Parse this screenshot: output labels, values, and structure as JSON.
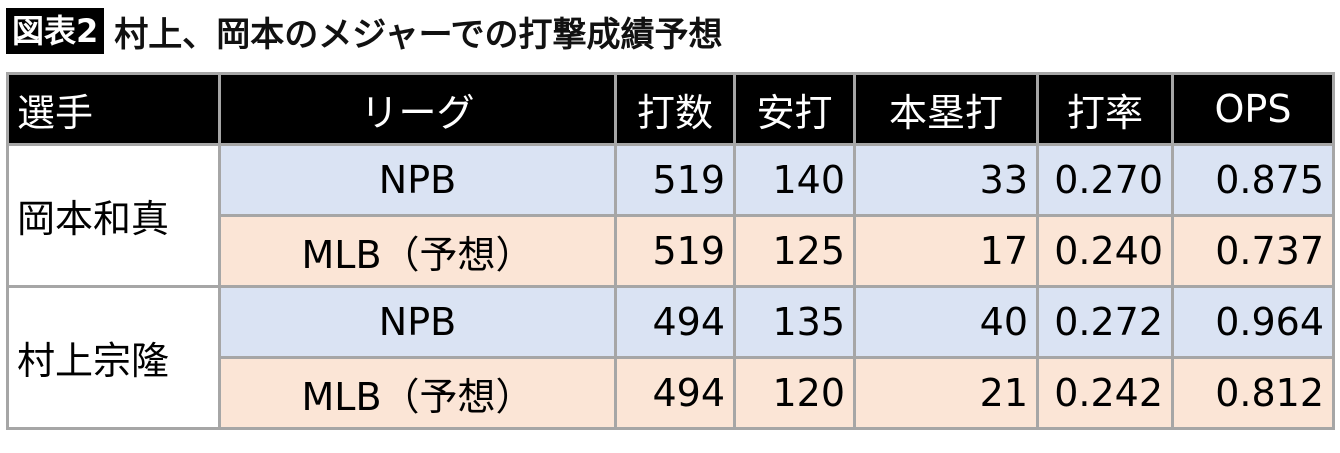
{
  "title": {
    "badge": "図表2",
    "text": "村上、岡本のメジャーでの打撃成績予想"
  },
  "colors": {
    "npb_row": "#dae3f3",
    "mlb_row": "#fbe5d6",
    "header": "#000000",
    "border": "#a6a6a6"
  },
  "headers": [
    "選手",
    "リーグ",
    "打数",
    "安打",
    "本塁打",
    "打率",
    "OPS"
  ],
  "players": [
    {
      "name": "岡本和真",
      "rows": [
        {
          "league": "NPB",
          "ab": "519",
          "hits": "140",
          "hr": "33",
          "avg": "0.270",
          "ops": "0.875"
        },
        {
          "league": "MLB（予想）",
          "ab": "519",
          "hits": "125",
          "hr": "17",
          "avg": "0.240",
          "ops": "0.737"
        }
      ]
    },
    {
      "name": "村上宗隆",
      "rows": [
        {
          "league": "NPB",
          "ab": "494",
          "hits": "135",
          "hr": "40",
          "avg": "0.272",
          "ops": "0.964"
        },
        {
          "league": "MLB（予想）",
          "ab": "494",
          "hits": "120",
          "hr": "21",
          "avg": "0.242",
          "ops": "0.812"
        }
      ]
    }
  ]
}
